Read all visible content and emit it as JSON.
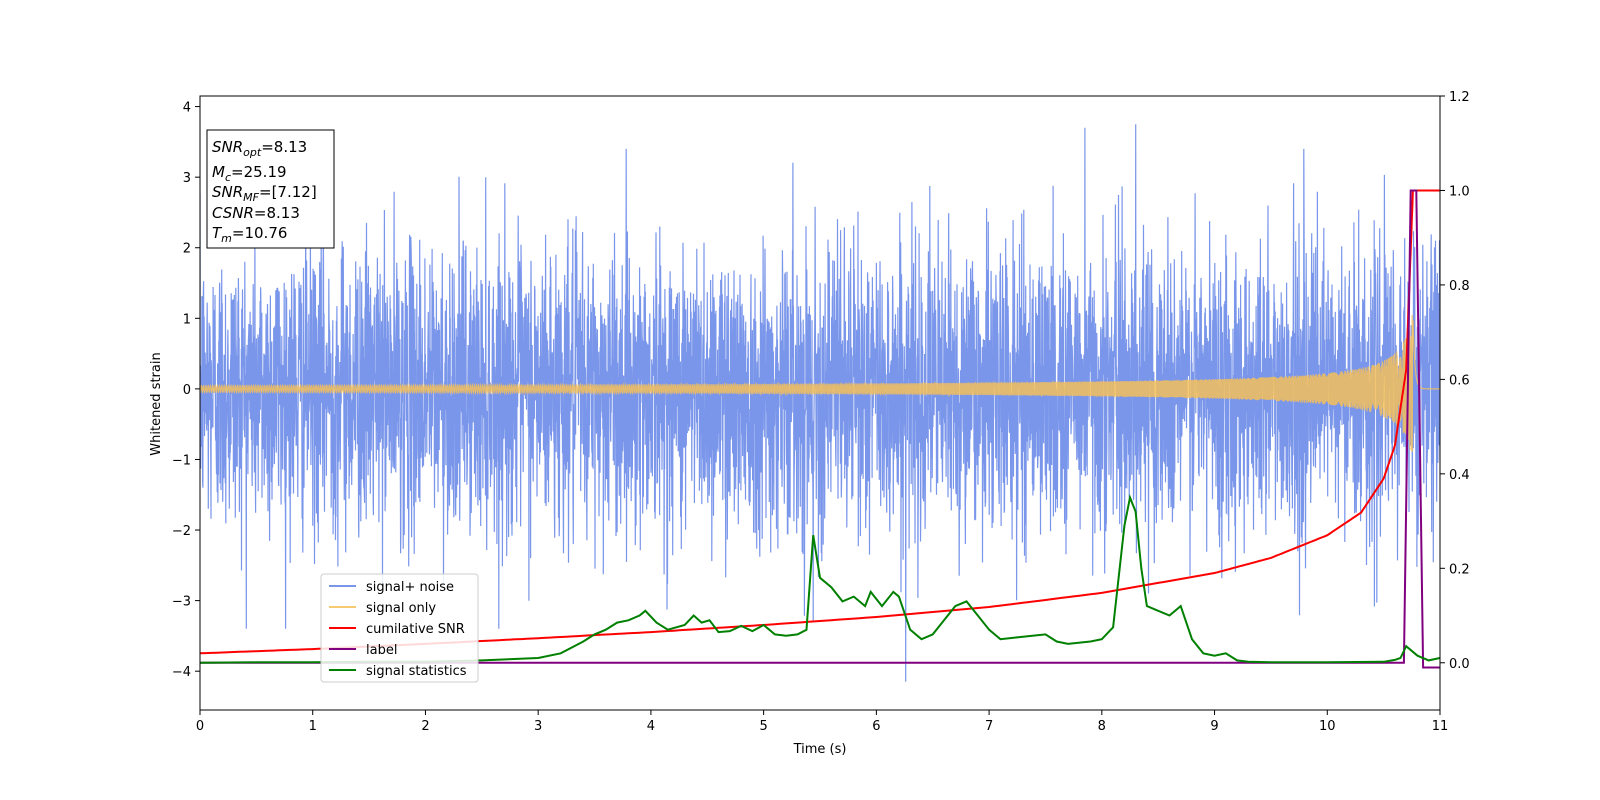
{
  "chart_data": {
    "type": "line",
    "xlabel": "Time (s)",
    "ylabel": "Whitened strain",
    "xlim": [
      0,
      11
    ],
    "ylim": [
      -4.55,
      4.15
    ],
    "y2lim": [
      -0.1,
      1.2
    ],
    "x_ticks": [
      0,
      1,
      2,
      3,
      4,
      5,
      6,
      7,
      8,
      9,
      10,
      11
    ],
    "y_ticks": [
      -4,
      -3,
      -2,
      -1,
      0,
      1,
      2,
      3,
      4
    ],
    "y2_ticks": [
      0.0,
      0.2,
      0.4,
      0.6,
      0.8,
      1.0,
      1.2
    ],
    "legend_position": "lower-left",
    "grid": false,
    "info_box": [
      {
        "sym": "SNR",
        "sub": "opt",
        "val": "=8.13"
      },
      {
        "sym": "M",
        "sub": "c",
        "val": "=25.19"
      },
      {
        "sym": "SNR",
        "sub": "MF",
        "val": "=[7.12]"
      },
      {
        "sym": "CSNR",
        "sub": "",
        "val": "=8.13"
      },
      {
        "sym": "T",
        "sub": "m",
        "val": "=10.76"
      }
    ],
    "series": [
      {
        "name": "signal+ noise",
        "color": "#4169e1",
        "axis": "left",
        "kind": "noise",
        "sigma": 1.0,
        "peak_values": [
          {
            "x": 5.44,
            "y": -3.3
          },
          {
            "x": 6.26,
            "y": -4.15
          },
          {
            "x": 8.3,
            "y": 3.75
          },
          {
            "x": 7.85,
            "y": 3.7
          }
        ]
      },
      {
        "name": "signal only",
        "color": "#f5c05a",
        "axis": "left",
        "kind": "chirp",
        "amp_at_end": 1.2,
        "merger_time": 10.76
      },
      {
        "name": "cumilative SNR",
        "color": "#ff0000",
        "axis": "right",
        "x": [
          0,
          1,
          2,
          3,
          4,
          5,
          6,
          7,
          8,
          9,
          9.5,
          10,
          10.3,
          10.5,
          10.6,
          10.7,
          10.76,
          10.8,
          11
        ],
        "y": [
          0.02,
          0.029,
          0.04,
          0.052,
          0.065,
          0.08,
          0.097,
          0.118,
          0.148,
          0.19,
          0.222,
          0.27,
          0.318,
          0.39,
          0.46,
          0.62,
          1.0,
          1.0,
          1.0
        ]
      },
      {
        "name": "label",
        "color": "#800080",
        "axis": "right",
        "x": [
          0,
          10.68,
          10.74,
          10.79,
          10.85,
          11
        ],
        "y": [
          0,
          0,
          1.0,
          1.0,
          -0.01,
          -0.01
        ]
      },
      {
        "name": "signal statistics",
        "color": "#008000",
        "axis": "right",
        "x": [
          0,
          0.5,
          1,
          1.5,
          2,
          2.5,
          3,
          3.2,
          3.4,
          3.5,
          3.6,
          3.7,
          3.8,
          3.9,
          3.95,
          4.05,
          4.15,
          4.3,
          4.38,
          4.45,
          4.52,
          4.6,
          4.7,
          4.8,
          4.9,
          5.0,
          5.1,
          5.2,
          5.3,
          5.38,
          5.44,
          5.5,
          5.6,
          5.7,
          5.8,
          5.9,
          5.95,
          6.05,
          6.15,
          6.2,
          6.3,
          6.4,
          6.5,
          6.6,
          6.7,
          6.8,
          6.9,
          7.0,
          7.1,
          7.3,
          7.5,
          7.6,
          7.7,
          7.9,
          8.0,
          8.1,
          8.2,
          8.25,
          8.3,
          8.35,
          8.4,
          8.5,
          8.6,
          8.7,
          8.8,
          8.9,
          9.0,
          9.1,
          9.2,
          9.3,
          9.5,
          10,
          10.5,
          10.6,
          10.65,
          10.7,
          10.8,
          10.9,
          11
        ],
        "y": [
          0.0,
          0.001,
          0.001,
          0.002,
          0.002,
          0.005,
          0.01,
          0.02,
          0.045,
          0.06,
          0.07,
          0.085,
          0.09,
          0.1,
          0.11,
          0.085,
          0.07,
          0.08,
          0.1,
          0.085,
          0.09,
          0.065,
          0.067,
          0.078,
          0.067,
          0.08,
          0.06,
          0.057,
          0.06,
          0.07,
          0.27,
          0.18,
          0.16,
          0.13,
          0.14,
          0.12,
          0.15,
          0.12,
          0.15,
          0.14,
          0.07,
          0.05,
          0.06,
          0.09,
          0.12,
          0.13,
          0.1,
          0.07,
          0.05,
          0.055,
          0.06,
          0.045,
          0.04,
          0.045,
          0.05,
          0.075,
          0.29,
          0.35,
          0.32,
          0.2,
          0.12,
          0.11,
          0.1,
          0.12,
          0.05,
          0.02,
          0.015,
          0.02,
          0.005,
          0.002,
          0.001,
          0.001,
          0.002,
          0.006,
          0.01,
          0.035,
          0.015,
          0.005,
          0.01
        ]
      }
    ]
  }
}
